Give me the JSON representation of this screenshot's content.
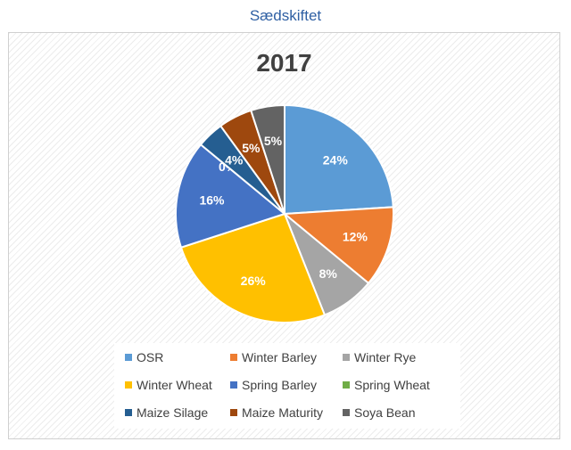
{
  "page": {
    "title": "Sædskiftet"
  },
  "chart_data": {
    "type": "pie",
    "title": "2017",
    "series": [
      {
        "name": "OSR",
        "value": 24,
        "label": "24%",
        "color": "#5b9bd5"
      },
      {
        "name": "Winter Barley",
        "value": 12,
        "label": "12%",
        "color": "#ed7d31"
      },
      {
        "name": "Winter Rye",
        "value": 8,
        "label": "8%",
        "color": "#a5a5a5"
      },
      {
        "name": "Winter Wheat",
        "value": 26,
        "label": "26%",
        "color": "#ffc000"
      },
      {
        "name": "Spring Barley",
        "value": 16,
        "label": "16%",
        "color": "#4472c4"
      },
      {
        "name": "Spring Wheat",
        "value": 0,
        "label": "0%",
        "color": "#70ad47"
      },
      {
        "name": "Maize Silage",
        "value": 4,
        "label": "4%",
        "color": "#255e91"
      },
      {
        "name": "Maize Maturity",
        "value": 5,
        "label": "5%",
        "color": "#9e480e"
      },
      {
        "name": "Soya Bean",
        "value": 5,
        "label": "5%",
        "color": "#636363"
      }
    ],
    "legend_position": "bottom"
  }
}
